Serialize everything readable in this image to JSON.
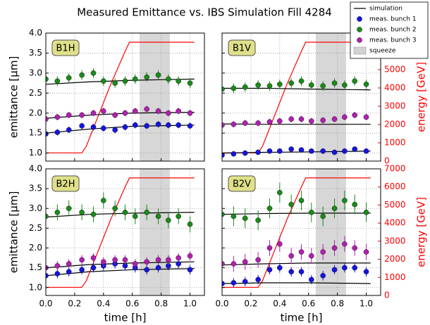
{
  "title": "Measured Emittance vs. IBS Simulation Fill 4284",
  "chart_data": [
    {
      "type": "scatter",
      "label": "B1H",
      "ylabel": "emittance [μm]",
      "xlim": [
        0,
        1.1
      ],
      "xticks": [
        {
          "value": 0,
          "label": "0.0"
        },
        {
          "value": 0.2,
          "label": "0.2"
        },
        {
          "value": 0.4,
          "label": "0.4"
        },
        {
          "value": 0.6,
          "label": "0.6"
        },
        {
          "value": 0.8,
          "label": "0.8"
        },
        {
          "value": 1,
          "label": "1.0"
        }
      ],
      "ylim": [
        0.8,
        4.0
      ],
      "yticks": [
        {
          "value": 1,
          "label": "1.0"
        },
        {
          "value": 1.5,
          "label": "1.5"
        },
        {
          "value": 2,
          "label": "2.0"
        },
        {
          "value": 2.5,
          "label": "2.5"
        },
        {
          "value": 3,
          "label": "3.0"
        },
        {
          "value": 3.5,
          "label": "3.5"
        },
        {
          "value": 4,
          "label": "4.0"
        }
      ],
      "y2lim": [
        0,
        7000
      ],
      "grid": true,
      "x": [
        0.0,
        0.08,
        0.16,
        0.25,
        0.33,
        0.4,
        0.48,
        0.55,
        0.62,
        0.7,
        0.78,
        0.85,
        0.92,
        1.0
      ],
      "series": [
        {
          "name": "meas. bunch 1",
          "color": "#1515e0",
          "error": 0.08,
          "values": [
            1.48,
            1.52,
            1.58,
            1.68,
            1.65,
            1.62,
            1.58,
            1.65,
            1.7,
            1.68,
            1.72,
            1.7,
            1.7,
            1.68
          ]
        },
        {
          "name": "meas. bunch 2",
          "color": "#1a8a1a",
          "error": 0.12,
          "values": [
            2.85,
            2.8,
            2.88,
            2.95,
            3.0,
            2.8,
            2.75,
            2.8,
            2.85,
            2.9,
            2.95,
            2.85,
            2.8,
            2.75
          ]
        },
        {
          "name": "meas. bunch 3",
          "color": "#b020b0",
          "error": 0.08,
          "values": [
            1.85,
            1.9,
            1.95,
            1.95,
            2.0,
            2.05,
            1.95,
            2.0,
            2.05,
            2.1,
            2.05,
            2.0,
            2.05,
            2.0
          ]
        }
      ],
      "simulation": {
        "name": "simulation",
        "color": "#000000",
        "x": [
          0,
          0.3,
          0.6,
          1.03
        ],
        "lines": [
          [
            1.5,
            1.6,
            1.67,
            1.7
          ],
          [
            2.72,
            2.78,
            2.82,
            2.85
          ],
          [
            1.87,
            1.95,
            2.0,
            2.02
          ]
        ]
      },
      "energy": {
        "axis": "y2",
        "color": "#ff0000",
        "x": [
          0,
          0.25,
          0.28,
          0.35,
          0.45,
          0.55,
          0.58,
          1.03
        ],
        "values": [
          450,
          450,
          800,
          2200,
          4200,
          6000,
          6500,
          6500
        ]
      },
      "span": {
        "name": "squeeze",
        "color": "#d3d3d3",
        "x": [
          0.65,
          0.86
        ]
      }
    },
    {
      "type": "scatter",
      "label": "B1V",
      "y2label": "energy [GeV]",
      "xlim": [
        0,
        1.1
      ],
      "xticks": [
        {
          "value": 0,
          "label": "0.0"
        },
        {
          "value": 0.2,
          "label": "0.2"
        },
        {
          "value": 0.4,
          "label": "0.4"
        },
        {
          "value": 0.6,
          "label": "0.6"
        },
        {
          "value": 0.8,
          "label": "0.8"
        },
        {
          "value": 1,
          "label": "1.0"
        }
      ],
      "ylim": [
        0.8,
        4.0
      ],
      "yticks": [
        {
          "value": 1,
          "label": "1.0"
        },
        {
          "value": 1.5,
          "label": "1.5"
        },
        {
          "value": 2,
          "label": "2.0"
        },
        {
          "value": 2.5,
          "label": "2.5"
        },
        {
          "value": 3,
          "label": "3.0"
        },
        {
          "value": 3.5,
          "label": "3.5"
        },
        {
          "value": 4,
          "label": "4.0"
        }
      ],
      "y2lim": [
        0,
        7000
      ],
      "y2ticks": [
        0,
        1000,
        2000,
        3000,
        4000,
        5000,
        6000
      ],
      "grid": true,
      "x": [
        0.0,
        0.08,
        0.16,
        0.25,
        0.33,
        0.4,
        0.48,
        0.55,
        0.62,
        0.7,
        0.78,
        0.85,
        0.92,
        1.0
      ],
      "series": [
        {
          "color": "#1515e0",
          "error": 0.05,
          "values": [
            0.95,
            0.98,
            1.0,
            1.02,
            1.05,
            1.05,
            1.1,
            1.08,
            1.05,
            1.05,
            1.02,
            1.05,
            1.1,
            1.05
          ]
        },
        {
          "color": "#1a8a1a",
          "error": 0.12,
          "values": [
            2.6,
            2.62,
            2.65,
            2.7,
            2.68,
            2.72,
            2.75,
            2.8,
            2.7,
            2.68,
            2.75,
            2.7,
            2.8,
            2.72
          ]
        },
        {
          "color": "#b020b0",
          "error": 0.08,
          "values": [
            1.7,
            1.72,
            1.75,
            1.75,
            1.78,
            1.8,
            1.85,
            1.85,
            1.8,
            1.82,
            1.85,
            1.9,
            1.95,
            1.9
          ]
        }
      ],
      "simulation": {
        "color": "#000000",
        "x": [
          0,
          0.3,
          0.6,
          1.03
        ],
        "lines": [
          [
            1.0,
            1.02,
            1.03,
            1.05
          ],
          [
            2.62,
            2.62,
            2.6,
            2.58
          ],
          [
            1.73,
            1.72,
            1.72,
            1.72
          ]
        ]
      },
      "energy": {
        "axis": "y2",
        "color": "#ff0000",
        "x": [
          0,
          0.25,
          0.28,
          0.35,
          0.45,
          0.55,
          0.58,
          1.03
        ],
        "values": [
          450,
          450,
          800,
          2200,
          4200,
          6000,
          6500,
          6500
        ]
      },
      "span": {
        "color": "#d3d3d3",
        "x": [
          0.65,
          0.86
        ]
      }
    },
    {
      "type": "scatter",
      "label": "B2H",
      "ylabel": "emittance [μm]",
      "xlabel": "time [h]",
      "xlim": [
        0,
        1.1
      ],
      "xticks": [
        {
          "value": 0,
          "label": "0.0"
        },
        {
          "value": 0.2,
          "label": "0.2"
        },
        {
          "value": 0.4,
          "label": "0.4"
        },
        {
          "value": 0.6,
          "label": "0.6"
        },
        {
          "value": 0.8,
          "label": "0.8"
        },
        {
          "value": 1,
          "label": "1.0"
        }
      ],
      "ylim": [
        0.8,
        4.0
      ],
      "yticks": [
        {
          "value": 1,
          "label": "1.0"
        },
        {
          "value": 1.5,
          "label": "1.5"
        },
        {
          "value": 2,
          "label": "2.0"
        },
        {
          "value": 2.5,
          "label": "2.5"
        },
        {
          "value": 3,
          "label": "3.0"
        },
        {
          "value": 3.5,
          "label": "3.5"
        },
        {
          "value": 4,
          "label": "4.0"
        }
      ],
      "y2lim": [
        0,
        7000
      ],
      "grid": true,
      "x": [
        0.0,
        0.08,
        0.16,
        0.25,
        0.33,
        0.4,
        0.48,
        0.55,
        0.62,
        0.7,
        0.78,
        0.85,
        0.92,
        1.0
      ],
      "series": [
        {
          "color": "#1515e0",
          "error": 0.12,
          "values": [
            1.3,
            1.35,
            1.4,
            1.45,
            1.5,
            1.55,
            1.6,
            1.55,
            1.5,
            1.45,
            1.5,
            1.55,
            1.6,
            1.45
          ]
        },
        {
          "color": "#1a8a1a",
          "error": 0.2,
          "values": [
            2.8,
            2.9,
            3.0,
            2.9,
            2.85,
            3.2,
            3.0,
            2.9,
            2.8,
            2.9,
            2.8,
            2.7,
            2.8,
            2.6
          ]
        },
        {
          "color": "#b020b0",
          "error": 0.12,
          "values": [
            1.5,
            1.55,
            1.6,
            1.7,
            1.75,
            1.65,
            1.7,
            1.7,
            1.6,
            1.65,
            1.7,
            1.7,
            1.75,
            1.8
          ]
        }
      ],
      "simulation": {
        "color": "#000000",
        "x": [
          0,
          0.3,
          0.6,
          1.03
        ],
        "lines": [
          [
            1.3,
            1.4,
            1.45,
            1.48
          ],
          [
            2.78,
            2.85,
            2.88,
            2.9
          ],
          [
            1.5,
            1.58,
            1.62,
            1.65
          ]
        ]
      },
      "energy": {
        "axis": "y2",
        "color": "#ff0000",
        "x": [
          0,
          0.25,
          0.28,
          0.35,
          0.45,
          0.55,
          0.58,
          1.03
        ],
        "values": [
          450,
          450,
          800,
          2200,
          4200,
          6000,
          6500,
          6500
        ]
      },
      "span": {
        "color": "#d3d3d3",
        "x": [
          0.65,
          0.86
        ]
      }
    },
    {
      "type": "scatter",
      "label": "B2V",
      "y2label": "energy [GeV]",
      "xlabel": "time [h]",
      "xlim": [
        0,
        1.1
      ],
      "xticks": [
        {
          "value": 0,
          "label": "0.0"
        },
        {
          "value": 0.2,
          "label": "0.2"
        },
        {
          "value": 0.4,
          "label": "0.4"
        },
        {
          "value": 0.6,
          "label": "0.6"
        },
        {
          "value": 0.8,
          "label": "0.8"
        },
        {
          "value": 1,
          "label": "1.0"
        }
      ],
      "ylim": [
        0.8,
        4.0
      ],
      "yticks": [
        {
          "value": 1,
          "label": "1.0"
        },
        {
          "value": 1.5,
          "label": "1.5"
        },
        {
          "value": 2,
          "label": "2.0"
        },
        {
          "value": 2.5,
          "label": "2.5"
        },
        {
          "value": 3,
          "label": "3.0"
        },
        {
          "value": 3.5,
          "label": "3.5"
        },
        {
          "value": 4,
          "label": "4.0"
        }
      ],
      "y2lim": [
        0,
        7000
      ],
      "y2ticks": [
        0,
        1000,
        2000,
        3000,
        4000,
        5000,
        6000,
        7000
      ],
      "grid": true,
      "x": [
        0.0,
        0.08,
        0.16,
        0.25,
        0.33,
        0.4,
        0.48,
        0.55,
        0.62,
        0.7,
        0.78,
        0.85,
        0.92,
        1.0
      ],
      "series": [
        {
          "color": "#1515e0",
          "error": 0.12,
          "values": [
            1.1,
            1.12,
            1.15,
            1.2,
            1.45,
            1.5,
            1.4,
            1.4,
            1.2,
            1.3,
            1.45,
            1.5,
            1.5,
            1.4
          ]
        },
        {
          "color": "#1a8a1a",
          "error": 0.25,
          "values": [
            2.85,
            2.8,
            2.75,
            2.7,
            3.0,
            3.4,
            3.1,
            3.2,
            2.9,
            2.8,
            3.0,
            3.2,
            3.1,
            2.9
          ]
        },
        {
          "color": "#b020b0",
          "error": 0.2,
          "values": [
            1.6,
            1.6,
            1.65,
            1.7,
            2.0,
            2.1,
            1.8,
            1.9,
            1.8,
            1.9,
            2.0,
            2.1,
            2.0,
            1.9
          ]
        }
      ],
      "simulation": {
        "color": "#000000",
        "x": [
          0,
          0.3,
          0.6,
          1.03
        ],
        "lines": [
          [
            1.1,
            1.12,
            1.12,
            1.1
          ],
          [
            2.85,
            2.87,
            2.88,
            2.88
          ],
          [
            1.57,
            1.6,
            1.62,
            1.62
          ]
        ]
      },
      "energy": {
        "axis": "y2",
        "color": "#ff0000",
        "x": [
          0,
          0.25,
          0.28,
          0.35,
          0.45,
          0.55,
          0.58,
          1.03
        ],
        "values": [
          450,
          450,
          800,
          2200,
          4200,
          6000,
          6500,
          6500
        ]
      },
      "span": {
        "color": "#d3d3d3",
        "x": [
          0.65,
          0.86
        ]
      }
    }
  ]
}
